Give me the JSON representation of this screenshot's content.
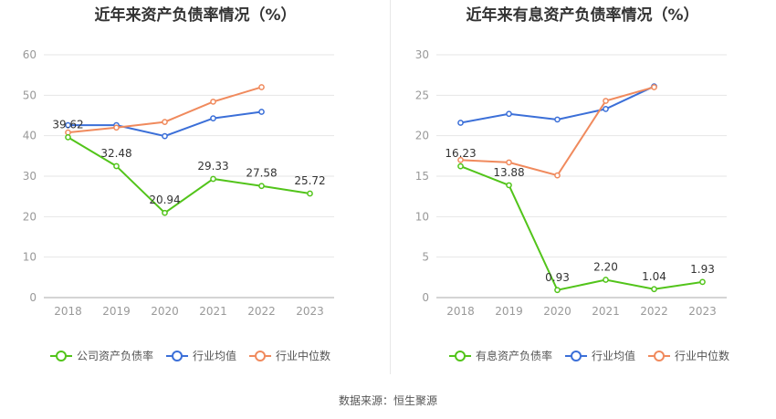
{
  "source": "数据来源：恒生聚源",
  "colors": {
    "company": "#52c41a",
    "avg": "#3b6fd8",
    "median": "#f08a5d",
    "grid": "#e6e6e6",
    "axis": "#999999"
  },
  "chart_data": [
    {
      "type": "line",
      "title": "近年来资产负债率情况（%）",
      "categories": [
        "2018",
        "2019",
        "2020",
        "2021",
        "2022",
        "2023"
      ],
      "ylim": [
        0,
        60
      ],
      "yticks": [
        0,
        10,
        20,
        30,
        40,
        50,
        60
      ],
      "legend_position": "bottom",
      "grid": true,
      "series": [
        {
          "name": "公司资产负债率",
          "key": "company",
          "values": [
            39.62,
            32.48,
            20.94,
            29.33,
            27.58,
            25.72
          ],
          "labels": [
            "39.62",
            "32.48",
            "20.94",
            "29.33",
            "27.58",
            "25.72"
          ]
        },
        {
          "name": "行业均值",
          "key": "avg",
          "values": [
            42.6,
            42.6,
            39.9,
            44.3,
            45.9,
            null
          ]
        },
        {
          "name": "行业中位数",
          "key": "median",
          "values": [
            40.8,
            42.0,
            43.4,
            48.4,
            52.0,
            null
          ]
        }
      ]
    },
    {
      "type": "line",
      "title": "近年来有息资产负债率情况（%）",
      "categories": [
        "2018",
        "2019",
        "2020",
        "2021",
        "2022",
        "2023"
      ],
      "ylim": [
        0,
        30
      ],
      "yticks": [
        0,
        5,
        10,
        15,
        20,
        25,
        30
      ],
      "legend_position": "bottom",
      "grid": true,
      "series": [
        {
          "name": "有息资产负债率",
          "key": "company",
          "values": [
            16.23,
            13.88,
            0.93,
            2.2,
            1.04,
            1.93
          ],
          "labels": [
            "16.23",
            "13.88",
            "0.93",
            "2.20",
            "1.04",
            "1.93"
          ]
        },
        {
          "name": "行业均值",
          "key": "avg",
          "values": [
            21.6,
            22.7,
            22.0,
            23.3,
            26.1,
            null
          ]
        },
        {
          "name": "行业中位数",
          "key": "median",
          "values": [
            17.0,
            16.7,
            15.1,
            24.3,
            26.0,
            null
          ]
        }
      ]
    }
  ]
}
